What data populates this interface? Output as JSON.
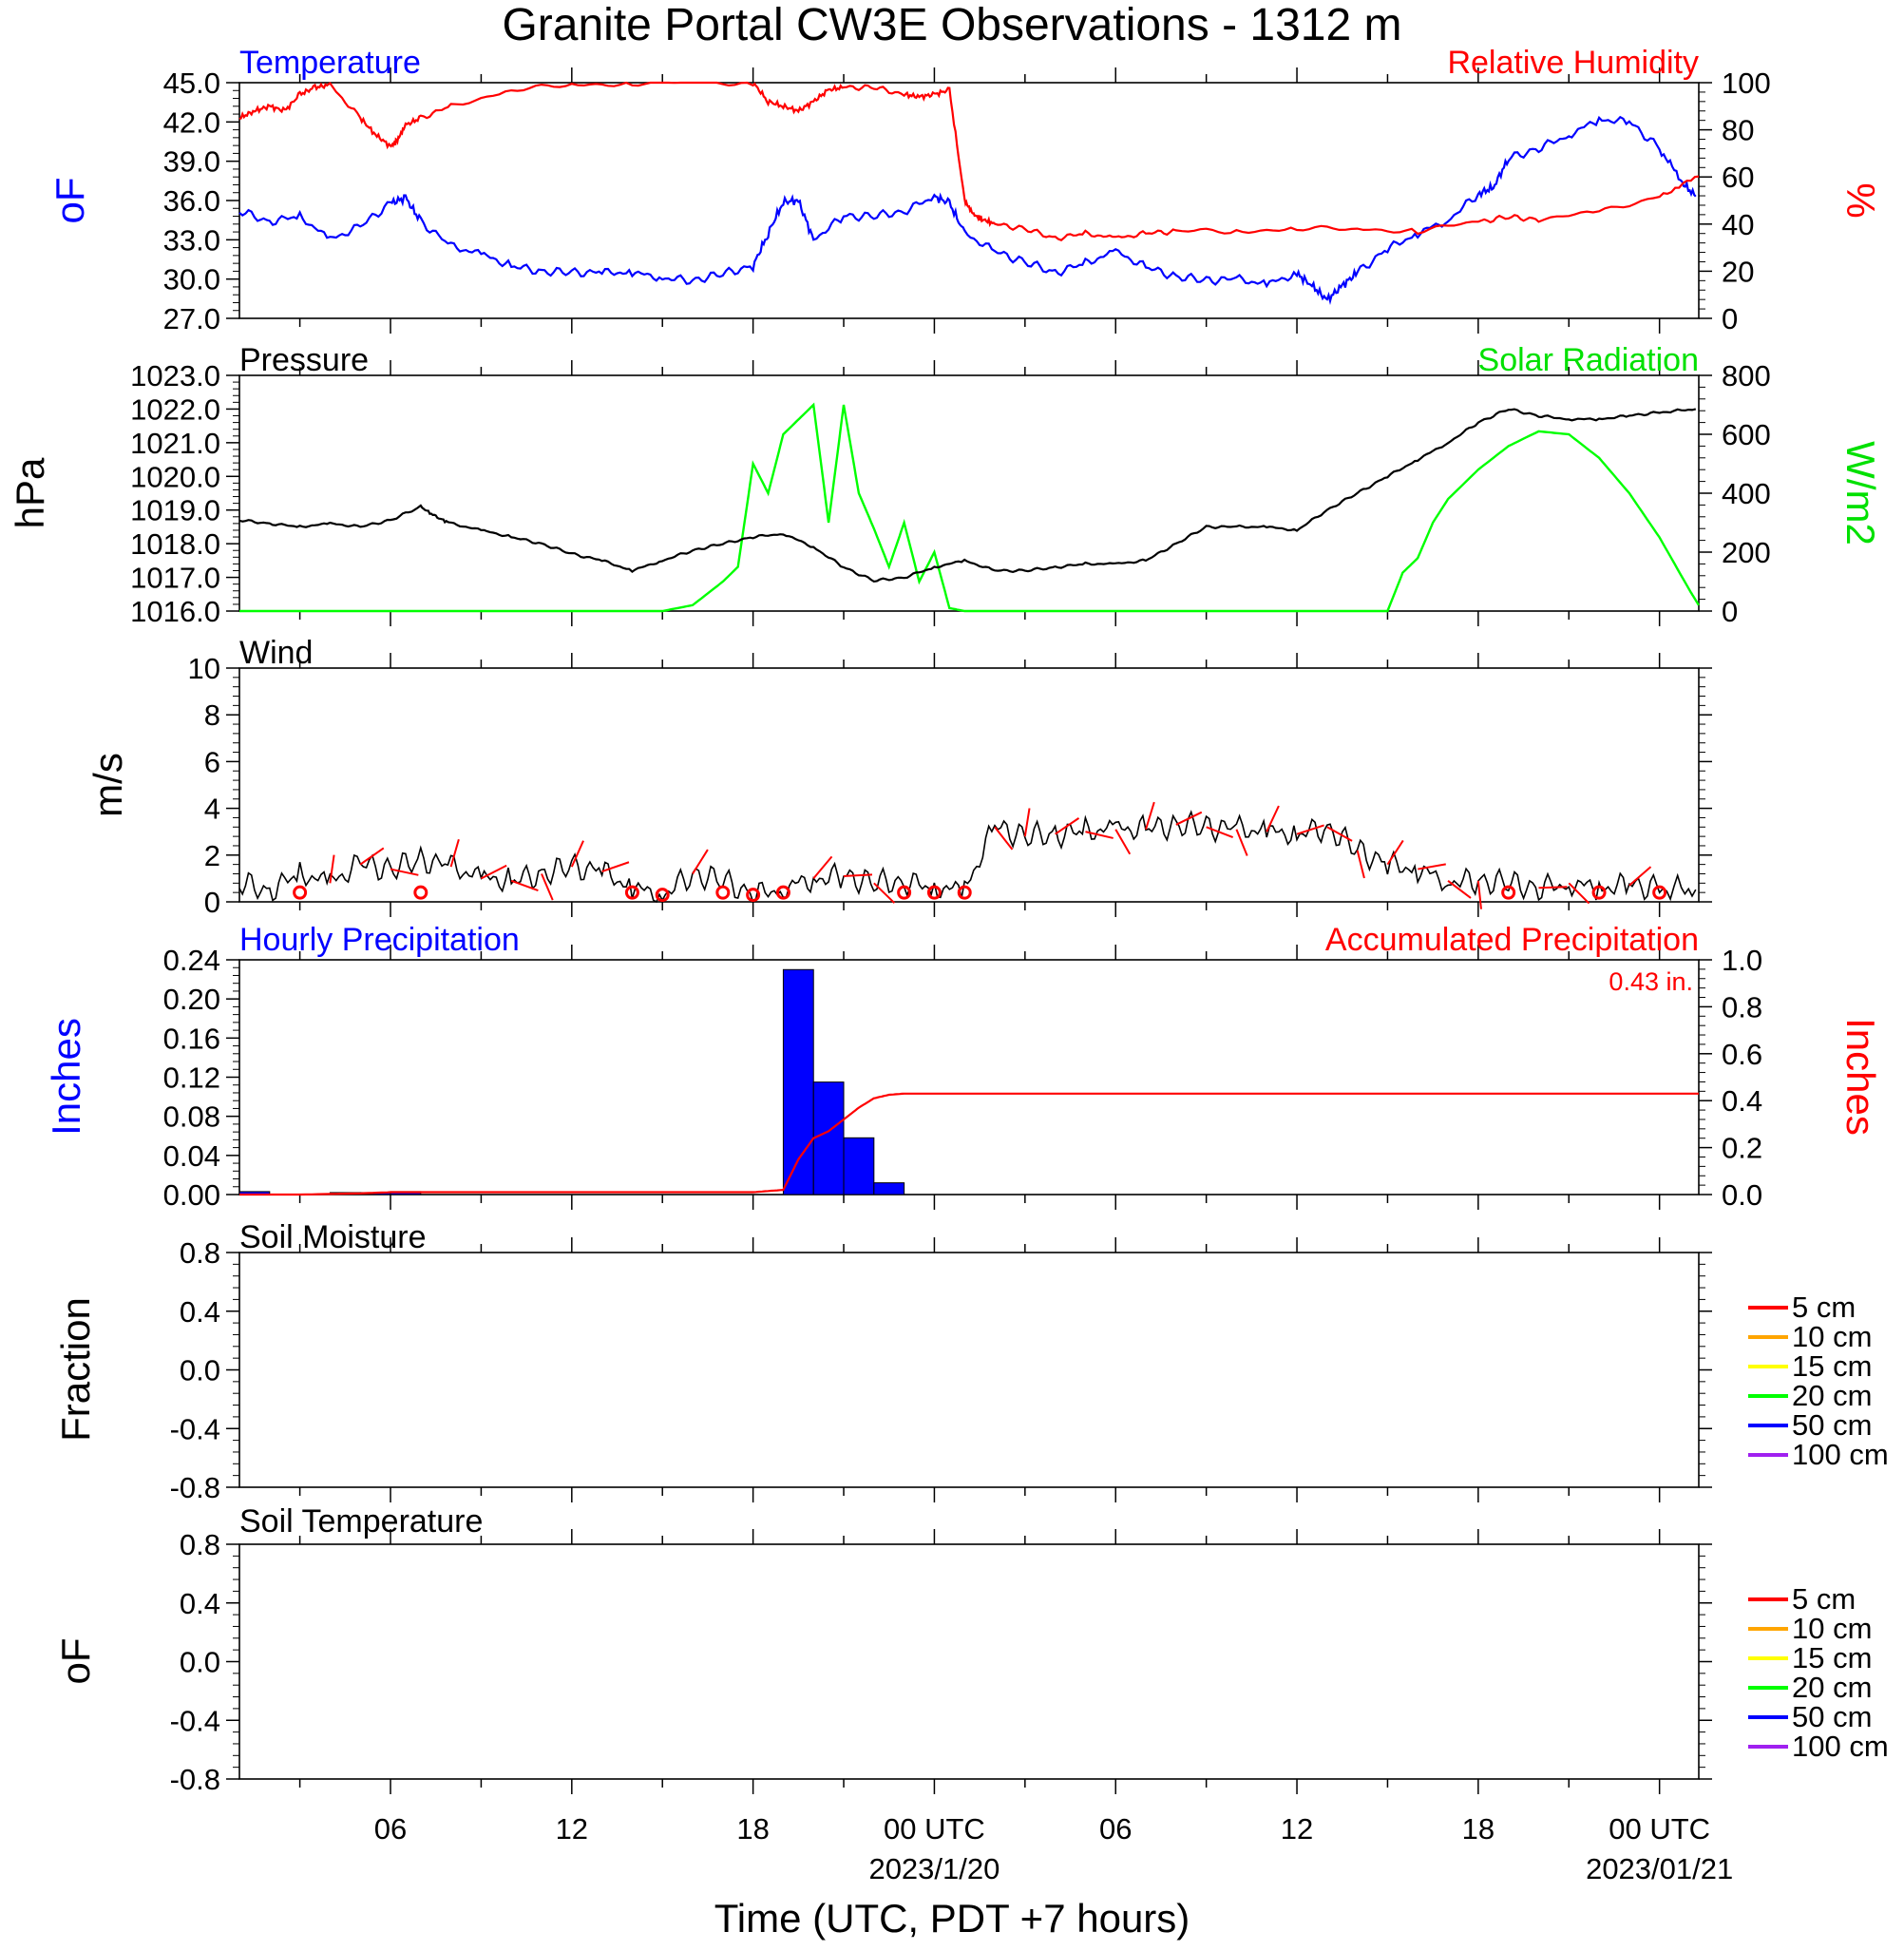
{
  "title": "Granite Portal CW3E Observations - 1312 m",
  "xaxis": {
    "label": "Time (UTC, PDT +7 hours)",
    "ticks": [
      {
        "hour": 6,
        "label": "06",
        "sub": ""
      },
      {
        "hour": 12,
        "label": "12",
        "sub": ""
      },
      {
        "hour": 18,
        "label": "18",
        "sub": ""
      },
      {
        "hour": 24,
        "label": "00 UTC",
        "sub": "2023/1/20"
      },
      {
        "hour": 30,
        "label": "06",
        "sub": ""
      },
      {
        "hour": 36,
        "label": "12",
        "sub": ""
      },
      {
        "hour": 42,
        "label": "18",
        "sub": ""
      },
      {
        "hour": 48,
        "label": "00 UTC",
        "sub": "2023/01/21"
      }
    ],
    "range_hours": [
      1,
      49.3
    ]
  },
  "panels": {
    "temp_rh": {
      "left_title": "Temperature",
      "right_title": "Relative Humidity",
      "left_unit": "oF",
      "right_unit": "%",
      "left_ticks": [
        "45.0",
        "42.0",
        "39.0",
        "36.0",
        "33.0",
        "30.0",
        "27.0"
      ],
      "right_ticks": [
        "100",
        "80",
        "60",
        "40",
        "20",
        "0"
      ]
    },
    "pressure_solar": {
      "left_title": "Pressure",
      "right_title": "Solar Radiation",
      "left_unit": "hPa",
      "right_unit": "W/m2",
      "left_ticks": [
        "1023.0",
        "1022.0",
        "1021.0",
        "1020.0",
        "1019.0",
        "1018.0",
        "1017.0",
        "1016.0"
      ],
      "right_ticks": [
        "800",
        "600",
        "400",
        "200",
        "0"
      ]
    },
    "wind": {
      "left_title": "Wind",
      "left_unit": "m/s",
      "left_ticks": [
        "10",
        "8",
        "6",
        "4",
        "2",
        "0"
      ]
    },
    "precip": {
      "left_title": "Hourly Precipitation",
      "right_title": "Accumulated Precipitation",
      "left_unit": "Inches",
      "right_unit": "Inches",
      "total_label": "0.43 in.",
      "left_ticks": [
        "0.24",
        "0.20",
        "0.16",
        "0.12",
        "0.08",
        "0.04",
        "0.00"
      ],
      "right_ticks": [
        "1.0",
        "0.8",
        "0.6",
        "0.4",
        "0.2",
        "0.0"
      ]
    },
    "soil_moisture": {
      "left_title": "Soil Moisture",
      "left_unit": "Fraction",
      "left_ticks": [
        "0.8",
        "0.4",
        "0.0",
        "-0.4",
        "-0.8"
      ]
    },
    "soil_temp": {
      "left_title": "Soil Temperature",
      "left_unit": "oF",
      "left_ticks": [
        "0.8",
        "0.4",
        "0.0",
        "-0.4",
        "-0.8"
      ]
    }
  },
  "soil_legend": [
    {
      "label": "5 cm",
      "color": "#ff0000"
    },
    {
      "label": "10 cm",
      "color": "#ffa500"
    },
    {
      "label": "15 cm",
      "color": "#ffff00"
    },
    {
      "label": "20 cm",
      "color": "#00ff00"
    },
    {
      "label": "50 cm",
      "color": "#0000ff"
    },
    {
      "label": "100 cm",
      "color": "#a020f0"
    }
  ],
  "colors": {
    "temperature": "#0000ff",
    "humidity": "#ff0000",
    "pressure": "#000000",
    "solar": "#00ff00",
    "wind": "#000000",
    "barb": "#ff0000",
    "hourly": "#0000ff",
    "accum": "#ff0000"
  },
  "chart_data": [
    {
      "type": "line",
      "title": "Temperature",
      "ylabel": "oF",
      "ylim": [
        27,
        45
      ],
      "series": [
        {
          "name": "Temperature",
          "x": [
            1,
            2,
            3,
            4,
            5,
            6,
            6.5,
            7,
            8,
            9,
            10,
            11,
            12,
            13,
            14,
            15,
            16,
            17,
            18,
            18.5,
            19,
            19.5,
            20,
            21,
            22,
            23,
            24,
            24.5,
            25,
            26,
            27,
            28,
            29,
            30,
            31,
            32,
            33,
            34,
            35,
            36,
            36.5,
            37,
            37.5,
            38,
            39,
            40,
            41,
            42,
            42.5,
            43,
            44,
            45,
            46,
            47,
            48,
            48.7,
            49.2
          ],
          "y": [
            35.2,
            34.4,
            34.8,
            33.0,
            34.0,
            35.8,
            36.2,
            34.4,
            32.5,
            31.9,
            31.0,
            30.6,
            30.5,
            30.5,
            30.5,
            30.1,
            29.9,
            30.4,
            31.0,
            33.5,
            35.9,
            36.0,
            33.0,
            34.8,
            34.8,
            35.2,
            36.3,
            35.8,
            33.5,
            32.1,
            31.3,
            30.5,
            31.2,
            32.1,
            30.9,
            30.2,
            29.9,
            30.0,
            29.6,
            30.4,
            29.5,
            28.4,
            29.5,
            30.5,
            32.3,
            33.5,
            34.5,
            36.5,
            37.0,
            39.2,
            40.0,
            41.0,
            42.2,
            42.0,
            40.0,
            37.5,
            36.3
          ]
        }
      ]
    },
    {
      "type": "line",
      "title": "Relative Humidity",
      "ylabel": "%",
      "ylim": [
        0,
        100
      ],
      "series": [
        {
          "name": "Relative Humidity",
          "x": [
            1,
            1.5,
            2,
            2.5,
            3,
            3.5,
            4,
            5,
            5.5,
            6,
            6.2,
            6.5,
            7,
            8,
            10,
            12,
            14,
            16,
            18,
            18.5,
            19,
            19.5,
            20,
            20.5,
            21,
            22,
            23,
            23.5,
            24,
            24.5,
            25,
            25.3,
            25.6,
            26,
            27,
            28,
            29,
            30,
            31,
            32,
            34,
            36,
            38,
            40,
            42,
            43,
            44,
            46,
            48,
            49.3
          ],
          "y": [
            85,
            88,
            90,
            88,
            95,
            98,
            99,
            85,
            78,
            73,
            75,
            82,
            85,
            90,
            97,
            99,
            99.8,
            100,
            100,
            92,
            90,
            88,
            92,
            97,
            98,
            98,
            95,
            94,
            95,
            97,
            50,
            44,
            42,
            40,
            38,
            34,
            36,
            34,
            36,
            37,
            37,
            38,
            38,
            37,
            41,
            43,
            42,
            45,
            52,
            60
          ]
        }
      ]
    },
    {
      "type": "line",
      "title": "Pressure",
      "ylabel": "hPa",
      "ylim": [
        1016,
        1023
      ],
      "series": [
        {
          "name": "Pressure",
          "x": [
            1,
            2,
            3,
            4,
            5,
            6,
            7,
            7.5,
            8,
            9,
            10,
            11,
            12,
            13,
            14,
            15,
            16,
            17,
            18,
            19,
            20,
            21,
            22,
            23,
            24,
            25,
            26,
            27,
            28,
            29,
            30,
            31,
            32,
            33,
            34,
            35,
            36,
            37,
            38,
            39,
            40,
            41,
            42,
            43,
            44,
            45,
            46,
            47,
            48,
            49.2
          ],
          "y": [
            1018.7,
            1018.6,
            1018.5,
            1018.6,
            1018.5,
            1018.7,
            1019.1,
            1018.8,
            1018.6,
            1018.4,
            1018.2,
            1018.0,
            1017.7,
            1017.5,
            1017.2,
            1017.5,
            1017.8,
            1018.0,
            1018.2,
            1018.3,
            1017.9,
            1017.3,
            1016.9,
            1017.0,
            1017.3,
            1017.5,
            1017.2,
            1017.2,
            1017.3,
            1017.4,
            1017.4,
            1017.5,
            1018.0,
            1018.5,
            1018.5,
            1018.5,
            1018.4,
            1019.0,
            1019.5,
            1020.0,
            1020.5,
            1021.0,
            1021.6,
            1022.0,
            1021.8,
            1021.7,
            1021.7,
            1021.8,
            1021.9,
            1022.0
          ]
        }
      ]
    },
    {
      "type": "line",
      "title": "Solar Radiation",
      "ylabel": "W/m2",
      "ylim": [
        0,
        800
      ],
      "series": [
        {
          "name": "Solar Radiation",
          "x": [
            1,
            15,
            16,
            17,
            17.5,
            18,
            18.5,
            19,
            19.5,
            20,
            20.5,
            21,
            21.5,
            22,
            22.5,
            23,
            23.5,
            24,
            24.5,
            25,
            25.5,
            39,
            39.5,
            40,
            40.5,
            41,
            42,
            43,
            44,
            45,
            46,
            47,
            48,
            49,
            49.3
          ],
          "y": [
            0,
            0,
            20,
            100,
            150,
            500,
            400,
            600,
            650,
            700,
            300,
            700,
            400,
            280,
            150,
            300,
            100,
            200,
            10,
            0,
            0,
            0,
            130,
            180,
            300,
            380,
            480,
            560,
            610,
            600,
            520,
            400,
            250,
            70,
            20
          ]
        }
      ]
    },
    {
      "type": "line",
      "title": "Wind",
      "ylabel": "m/s",
      "ylim": [
        0,
        10
      ],
      "series": [
        {
          "name": "Wind",
          "x": [
            1,
            2,
            3,
            4,
            5,
            6,
            7,
            8,
            9,
            10,
            11,
            12,
            13,
            14,
            15,
            16,
            17,
            18,
            19,
            20,
            21,
            22,
            23,
            24,
            25,
            26,
            27,
            28,
            29,
            30,
            31,
            32,
            33,
            34,
            35,
            36,
            37,
            38,
            39,
            40,
            41,
            42,
            43,
            44,
            45,
            46,
            47,
            48,
            49.2
          ],
          "y": [
            0.8,
            0.5,
            1.2,
            0.8,
            1.6,
            1.4,
            1.8,
            1.5,
            1.0,
            0.9,
            1.2,
            1.5,
            1.3,
            0.6,
            0.3,
            1.2,
            0.9,
            0.3,
            0.6,
            1.0,
            1.1,
            0.8,
            0.9,
            0.6,
            0.5,
            3.2,
            2.8,
            2.9,
            3.0,
            3.1,
            3.1,
            3.3,
            3.2,
            3.1,
            3.0,
            2.9,
            3.2,
            2.2,
            1.6,
            1.4,
            0.9,
            0.9,
            0.8,
            0.6,
            0.8,
            0.6,
            0.7,
            0.6,
            0.5
          ]
        }
      ]
    },
    {
      "type": "bar",
      "title": "Hourly Precipitation",
      "ylabel": "Inches",
      "ylim": [
        0,
        0.24
      ],
      "x": [
        1,
        4,
        5,
        6,
        19,
        20,
        21,
        22
      ],
      "values": [
        0.003,
        0.002,
        0.002,
        0.003,
        0.23,
        0.115,
        0.058,
        0.012
      ]
    },
    {
      "type": "line",
      "title": "Accumulated Precipitation",
      "ylabel": "Inches",
      "ylim": [
        0,
        1.0
      ],
      "series": [
        {
          "name": "Accumulated Precipitation",
          "x": [
            1,
            3,
            5,
            6,
            18,
            19,
            19.5,
            20,
            20.5,
            21,
            21.5,
            22,
            22.5,
            23,
            23.5,
            49.3
          ],
          "y": [
            0.0,
            0.0,
            0.005,
            0.01,
            0.01,
            0.02,
            0.15,
            0.24,
            0.27,
            0.32,
            0.37,
            0.41,
            0.425,
            0.43,
            0.43,
            0.43
          ]
        }
      ]
    }
  ]
}
